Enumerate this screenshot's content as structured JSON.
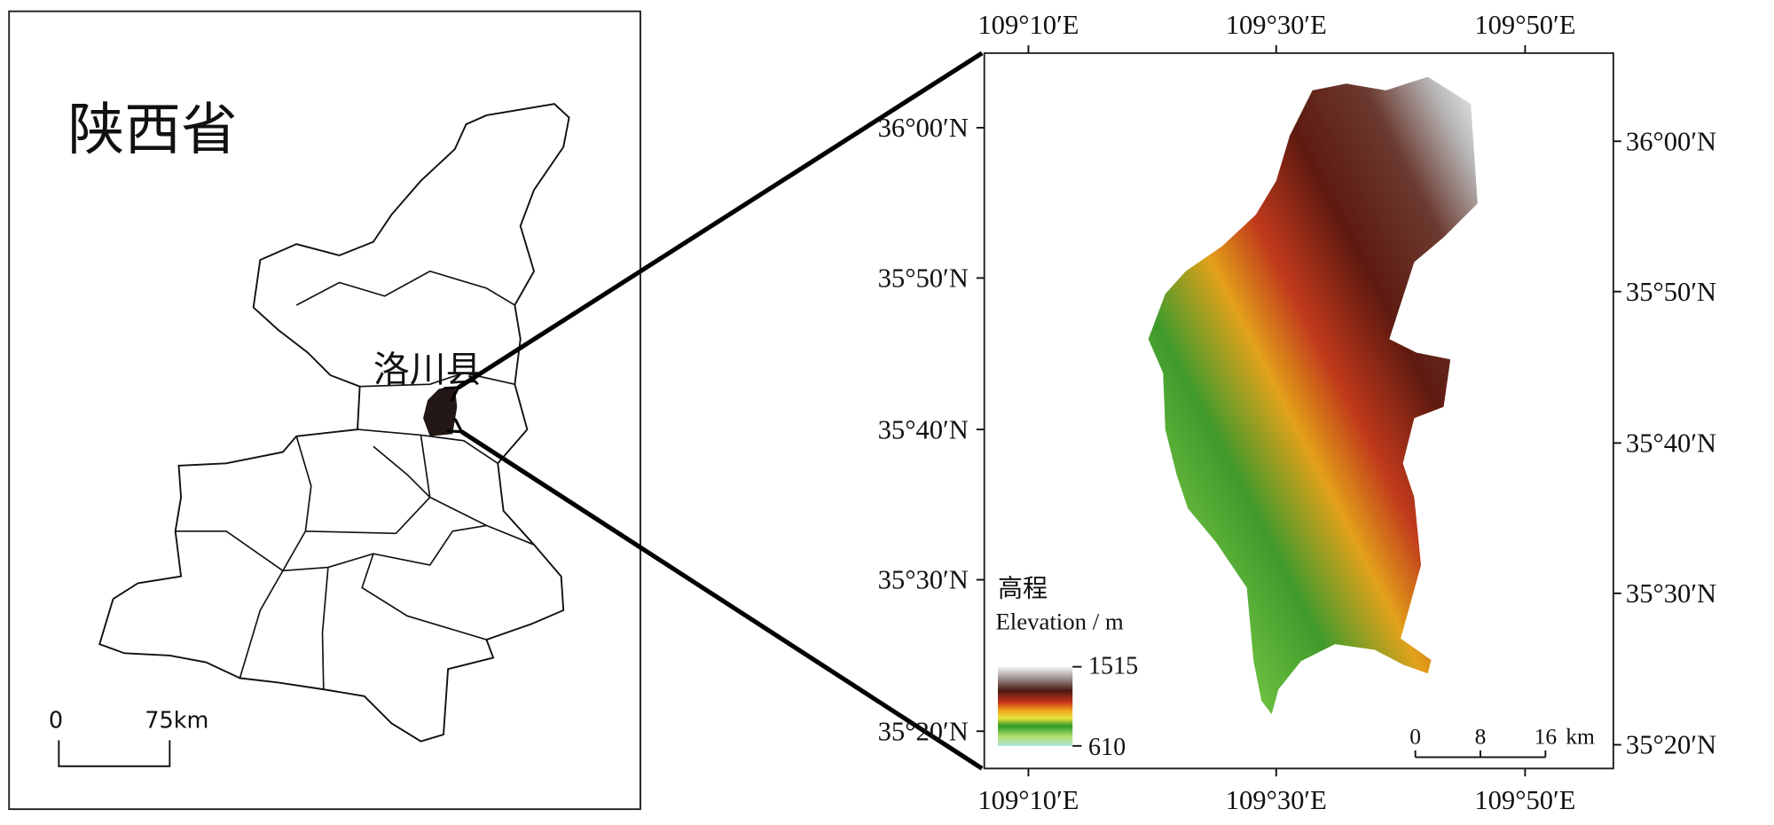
{
  "inset": {
    "title": "陕西省",
    "county_label": "洛川县",
    "scale_bar": {
      "start": 0,
      "end": "75km"
    }
  },
  "main": {
    "x_ticks_top": [
      "109°10′E",
      "109°30′E",
      "109°50′E"
    ],
    "x_ticks_bottom": [
      "109°10′E",
      "109°30′E",
      "109°50′E"
    ],
    "y_ticks_left": [
      "36°00′N",
      "35°50′N",
      "35°40′N",
      "35°30′N",
      "35°20′N"
    ],
    "y_ticks_right": [
      "36°00′N",
      "35°50′N",
      "35°40′N",
      "35°30′N",
      "35°20′N"
    ],
    "legend": {
      "title": "高程",
      "subtitle": "Elevation / m",
      "max": 1515,
      "min": 610
    },
    "scale_bar": {
      "ticks": [
        0,
        8,
        16
      ],
      "unit": "km"
    }
  }
}
